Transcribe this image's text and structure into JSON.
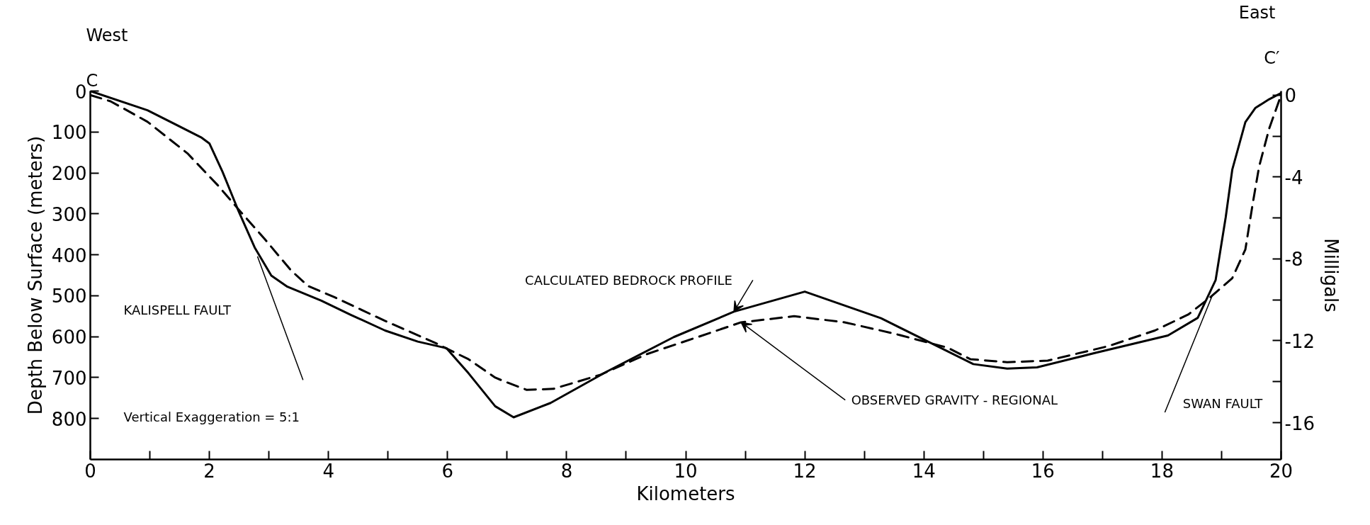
{
  "chart_data": {
    "type": "line",
    "xlabel": "Kilometers",
    "ylabel": "Depth Below Surface (meters)",
    "y2label": "Milligals",
    "xlim": [
      0,
      20
    ],
    "xticks": [
      0,
      {
        "value": 1,
        "label": null
      },
      2,
      {
        "value": 3,
        "label": null
      },
      4,
      {
        "value": 5,
        "label": null
      },
      6,
      {
        "value": 7,
        "label": null
      },
      8,
      {
        "value": 9,
        "label": null
      },
      10,
      {
        "value": 11,
        "label": null
      },
      12,
      {
        "value": 13,
        "label": null
      },
      14,
      {
        "value": 15,
        "label": null
      },
      16,
      {
        "value": 17,
        "label": null
      },
      18,
      {
        "value": 19,
        "label": null
      },
      20
    ],
    "ylim": [
      900,
      0
    ],
    "yticks": [
      0,
      100,
      200,
      300,
      400,
      500,
      600,
      700,
      800
    ],
    "y2lim": [
      -17.8,
      0.2
    ],
    "y2ticks": [
      0,
      {
        "value": -2,
        "label": null
      },
      -4,
      {
        "value": -6,
        "label": null
      },
      -8,
      {
        "value": -10,
        "label": null
      },
      -12,
      {
        "value": -14,
        "label": null
      },
      -16
    ],
    "grid": false,
    "series": [
      {
        "name": "CALCULATED BEDROCK PROFILE",
        "color": "#000000",
        "line_style": "solid",
        "x": [
          0,
          0.96,
          1.86,
          2.0,
          2.22,
          2.48,
          2.76,
          3.04,
          3.31,
          3.88,
          4.38,
          4.95,
          5.5,
          5.98,
          6.35,
          6.8,
          7.11,
          7.73,
          8.68,
          9.8,
          10.81,
          12.0,
          13.28,
          14.07,
          14.83,
          15.4,
          15.9,
          16.87,
          18.1,
          18.6,
          18.9,
          19.07,
          19.18,
          19.4,
          19.57,
          19.8,
          20.0
        ],
        "values": [
          0,
          47,
          113,
          128,
          197,
          290,
          382,
          451,
          478,
          512,
          547,
          585,
          612,
          628,
          689,
          770,
          797,
          762,
          685,
          601,
          539,
          490,
          555,
          612,
          667,
          678,
          675,
          640,
          597,
          554,
          462,
          308,
          192,
          76,
          41,
          20,
          5
        ]
      },
      {
        "name": "OBSERVED GRAVITY - REGIONAL",
        "color": "#000000",
        "line_style": "dashed",
        "axis": "y2",
        "x": [
          0,
          0.34,
          0.96,
          1.63,
          2.14,
          2.48,
          2.92,
          3.37,
          3.66,
          4.1,
          4.95,
          5.79,
          6.35,
          6.8,
          6.94,
          7.33,
          7.78,
          8.57,
          9.35,
          10.14,
          10.93,
          11.82,
          12.67,
          13.5,
          14.4,
          14.78,
          15.4,
          16.08,
          17.09,
          17.88,
          18.44,
          18.78,
          19.18,
          19.4,
          19.52,
          19.63,
          19.8,
          20.0
        ],
        "values": [
          0,
          -0.3,
          -1.3,
          -2.84,
          -4.4,
          -5.55,
          -7.0,
          -8.56,
          -9.33,
          -9.87,
          -11.03,
          -12.1,
          -12.9,
          -13.8,
          -13.97,
          -14.4,
          -14.35,
          -13.66,
          -12.65,
          -11.88,
          -11.1,
          -10.8,
          -11.1,
          -11.65,
          -12.34,
          -12.9,
          -13.05,
          -12.97,
          -12.27,
          -11.5,
          -10.72,
          -9.95,
          -8.94,
          -7.54,
          -5.36,
          -3.5,
          -1.63,
          0
        ]
      },
      {
        "color": "#000000",
        "line_style": "solid",
        "x": [
          2.81,
          3.57
        ],
        "values": [
          405,
          705
        ]
      },
      {
        "color": "#000000",
        "line_style": "solid",
        "x": [
          18.84,
          18.05
        ],
        "values": [
          501,
          784
        ]
      }
    ],
    "annotations": [
      "West",
      "C",
      "East",
      "C′",
      "KALISPELL FAULT",
      "SWAN FAULT",
      "Vertical Exaggeration = 5:1"
    ]
  }
}
